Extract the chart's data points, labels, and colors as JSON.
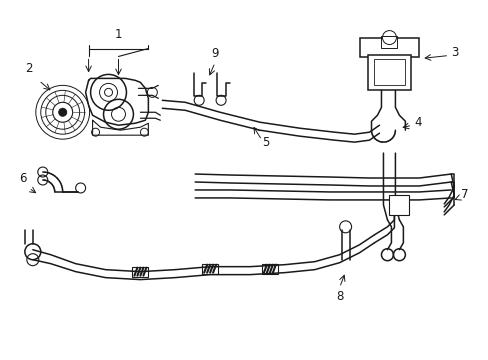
{
  "bg_color": "#ffffff",
  "line_color": "#1a1a1a",
  "lw": 1.1,
  "fig_width": 4.89,
  "fig_height": 3.6,
  "dpi": 100
}
